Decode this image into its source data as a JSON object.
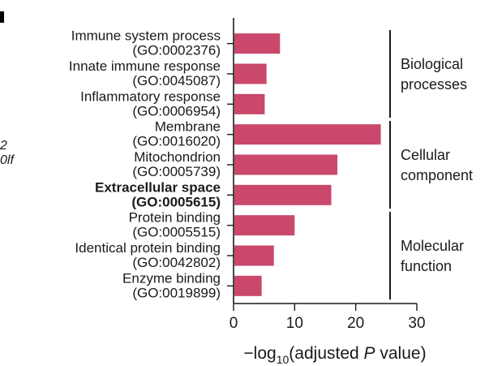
{
  "chart_data": {
    "type": "bar",
    "orientation": "horizontal",
    "categories": [
      {
        "name": "Immune system process",
        "id": "(GO:0002376)",
        "bold": false
      },
      {
        "name": "Innate immune response",
        "id": "(GO:0045087)",
        "bold": false
      },
      {
        "name": "Inflammatory response",
        "id": "(GO:0006954)",
        "bold": false
      },
      {
        "name": "Membrane",
        "id": "(GO:0016020)",
        "bold": false
      },
      {
        "name": "Mitochondrion",
        "id": "(GO:0005739)",
        "bold": false
      },
      {
        "name": "Extracellular space",
        "id": "(GO:0005615)",
        "bold": true
      },
      {
        "name": "Protein binding",
        "id": "(GO:0005515)",
        "bold": false
      },
      {
        "name": "Identical protein binding",
        "id": "(GO:0042802)",
        "bold": false
      },
      {
        "name": "Enzyme binding",
        "id": "(GO:0019899)",
        "bold": false
      }
    ],
    "values": [
      7.6,
      5.4,
      5.1,
      24.1,
      17.0,
      16.0,
      10.0,
      6.6,
      4.6
    ],
    "xlim": [
      0,
      30
    ],
    "xticks": [
      0,
      10,
      20,
      30
    ],
    "xlabel": {
      "prefix": "−log",
      "sub": "10",
      "mid": "(adjusted ",
      "italic": "P",
      "suffix": " value)"
    },
    "groups": [
      {
        "lines": [
          "Biological",
          "processes"
        ],
        "start": 0,
        "end": 2
      },
      {
        "lines": [
          "Cellular",
          "component"
        ],
        "start": 3,
        "end": 5
      },
      {
        "lines": [
          "Molecular",
          "function"
        ],
        "start": 6,
        "end": 8
      }
    ],
    "grid": false,
    "colors": {
      "bar": "#c9486b",
      "text": "#1a1a1a"
    }
  },
  "edge_fragments": [
    "2",
    "0lf"
  ]
}
